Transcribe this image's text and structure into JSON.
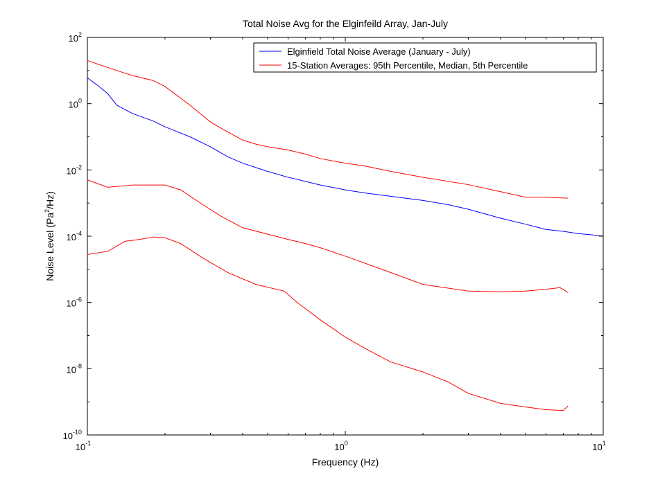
{
  "chart_data": {
    "type": "line",
    "title": "Total Noise Avg for the Elginfeild Array, Jan-July",
    "xlabel": "Frequency (Hz)",
    "ylabel": {
      "pre": "Noise Level (Pa",
      "sup": "2",
      "post": "/Hz)"
    },
    "x_scale": "log",
    "y_scale": "log",
    "xlim": [
      0.1,
      10
    ],
    "ylim": [
      1e-10,
      100
    ],
    "grid": false,
    "legend_position": "top-right",
    "x_ticks": [
      {
        "value": 0.1,
        "base": "10",
        "exp": "-1"
      },
      {
        "value": 1,
        "base": "10",
        "exp": "0"
      },
      {
        "value": 10,
        "base": "10",
        "exp": "1"
      }
    ],
    "y_ticks": [
      {
        "value": 100,
        "base": "10",
        "exp": "2"
      },
      {
        "value": 1,
        "base": "10",
        "exp": "0"
      },
      {
        "value": 0.01,
        "base": "10",
        "exp": "-2"
      },
      {
        "value": 0.0001,
        "base": "10",
        "exp": "-4"
      },
      {
        "value": 1e-06,
        "base": "10",
        "exp": "-6"
      },
      {
        "value": 1e-08,
        "base": "10",
        "exp": "-8"
      },
      {
        "value": 1e-10,
        "base": "10",
        "exp": "-10"
      }
    ],
    "legend": [
      {
        "label": "Elginfield Total Noise Average (January - July)",
        "color": "#0000ff"
      },
      {
        "label": "15-Station Averages: 95th Percentile, Median, 5th Percentile",
        "color": "#ff0000"
      }
    ],
    "series": [
      {
        "color": "#0000ff",
        "points": [
          [
            0.1,
            6.0
          ],
          [
            0.11,
            3.5
          ],
          [
            0.12,
            2.0
          ],
          [
            0.13,
            0.9
          ],
          [
            0.15,
            0.5
          ],
          [
            0.18,
            0.3
          ],
          [
            0.2,
            0.2
          ],
          [
            0.25,
            0.1
          ],
          [
            0.3,
            0.05
          ],
          [
            0.35,
            0.025
          ],
          [
            0.4,
            0.016
          ],
          [
            0.5,
            0.009
          ],
          [
            0.6,
            0.006
          ],
          [
            0.7,
            0.0045
          ],
          [
            0.8,
            0.0035
          ],
          [
            1.0,
            0.0025
          ],
          [
            1.2,
            0.002
          ],
          [
            1.5,
            0.0016
          ],
          [
            2.0,
            0.0012
          ],
          [
            2.5,
            0.0009
          ],
          [
            3.0,
            0.00065
          ],
          [
            4.0,
            0.00035
          ],
          [
            5.0,
            0.00023
          ],
          [
            6.0,
            0.00016
          ],
          [
            7.0,
            0.00014
          ],
          [
            8.0,
            0.00012
          ],
          [
            9.0,
            0.00011
          ],
          [
            10.0,
            0.0001
          ]
        ]
      },
      {
        "color": "#ff0000",
        "points": [
          [
            0.1,
            20
          ],
          [
            0.13,
            10
          ],
          [
            0.15,
            7
          ],
          [
            0.18,
            5
          ],
          [
            0.2,
            3.3
          ],
          [
            0.25,
            0.9
          ],
          [
            0.3,
            0.28
          ],
          [
            0.35,
            0.14
          ],
          [
            0.4,
            0.08
          ],
          [
            0.45,
            0.06
          ],
          [
            0.5,
            0.05
          ],
          [
            0.6,
            0.04
          ],
          [
            0.7,
            0.03
          ],
          [
            0.8,
            0.022
          ],
          [
            1.0,
            0.016
          ],
          [
            1.2,
            0.013
          ],
          [
            1.5,
            0.009
          ],
          [
            2.0,
            0.006
          ],
          [
            3.0,
            0.0036
          ],
          [
            4.0,
            0.0022
          ],
          [
            5.0,
            0.0015
          ],
          [
            6.0,
            0.0015
          ],
          [
            7.3,
            0.0014
          ]
        ]
      },
      {
        "color": "#ff0000",
        "points": [
          [
            0.1,
            0.005
          ],
          [
            0.12,
            0.003
          ],
          [
            0.15,
            0.0035
          ],
          [
            0.2,
            0.0035
          ],
          [
            0.23,
            0.0025
          ],
          [
            0.28,
            0.0009
          ],
          [
            0.33,
            0.0004
          ],
          [
            0.4,
            0.00018
          ],
          [
            0.5,
            0.000115
          ],
          [
            0.6,
            8e-05
          ],
          [
            0.7,
            6e-05
          ],
          [
            0.8,
            4.5e-05
          ],
          [
            1.0,
            2.5e-05
          ],
          [
            1.2,
            1.5e-05
          ],
          [
            1.5,
            8e-06
          ],
          [
            2.0,
            3.5e-06
          ],
          [
            3.0,
            2.2e-06
          ],
          [
            4.0,
            2.1e-06
          ],
          [
            5.0,
            2.2e-06
          ],
          [
            6.0,
            2.5e-06
          ],
          [
            6.8,
            2.8e-06
          ],
          [
            7.3,
            2e-06
          ]
        ]
      },
      {
        "color": "#ff0000",
        "points": [
          [
            0.1,
            2.8e-05
          ],
          [
            0.12,
            3.5e-05
          ],
          [
            0.14,
            7e-05
          ],
          [
            0.16,
            8e-05
          ],
          [
            0.18,
            9.5e-05
          ],
          [
            0.2,
            9e-05
          ],
          [
            0.23,
            6e-05
          ],
          [
            0.28,
            2.2e-05
          ],
          [
            0.35,
            8e-06
          ],
          [
            0.45,
            3.5e-06
          ],
          [
            0.58,
            2.2e-06
          ],
          [
            0.65,
            1e-06
          ],
          [
            0.8,
            3e-07
          ],
          [
            1.0,
            9e-08
          ],
          [
            1.2,
            4e-08
          ],
          [
            1.5,
            1.6e-08
          ],
          [
            2.0,
            8e-09
          ],
          [
            2.5,
            4e-09
          ],
          [
            3.0,
            1.8e-09
          ],
          [
            4.0,
            9e-10
          ],
          [
            5.0,
            7e-10
          ],
          [
            6.0,
            5.8e-10
          ],
          [
            7.0,
            5.5e-10
          ],
          [
            7.3,
            7.5e-10
          ]
        ]
      }
    ]
  }
}
